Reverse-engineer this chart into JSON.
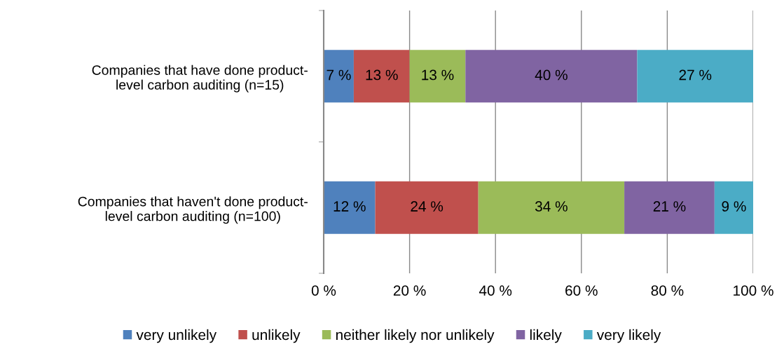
{
  "chart_data": {
    "type": "bar",
    "orientation": "horizontal",
    "stacked": true,
    "categories": [
      "Companies that have done product-\nlevel carbon auditing (n=15)",
      "Companies that haven't done product-\nlevel carbon auditing (n=100)"
    ],
    "series": [
      {
        "name": "very unlikely",
        "color": "#4f81bd",
        "values": [
          7,
          12
        ],
        "value_labels": [
          "7 %",
          "12 %"
        ]
      },
      {
        "name": "unlikely",
        "color": "#c0504d",
        "values": [
          13,
          24
        ],
        "value_labels": [
          "13 %",
          "24 %"
        ]
      },
      {
        "name": "neither likely nor unlikely",
        "color": "#9bbb59",
        "values": [
          13,
          34
        ],
        "value_labels": [
          "13 %",
          "34 %"
        ]
      },
      {
        "name": "likely",
        "color": "#8064a2",
        "values": [
          40,
          21
        ],
        "value_labels": [
          "40 %",
          "21 %"
        ]
      },
      {
        "name": "very likely",
        "color": "#4bacc6",
        "values": [
          27,
          9
        ],
        "value_labels": [
          "27 %",
          "9 %"
        ]
      }
    ],
    "xlim": [
      0,
      100
    ],
    "xticks": [
      {
        "value": 0,
        "label": "0 %"
      },
      {
        "value": 20,
        "label": "20 %"
      },
      {
        "value": 40,
        "label": "40 %"
      },
      {
        "value": 60,
        "label": "60 %"
      },
      {
        "value": 80,
        "label": "80 %"
      },
      {
        "value": 100,
        "label": "100 %"
      }
    ],
    "grid": "x",
    "legend": "bottom"
  }
}
